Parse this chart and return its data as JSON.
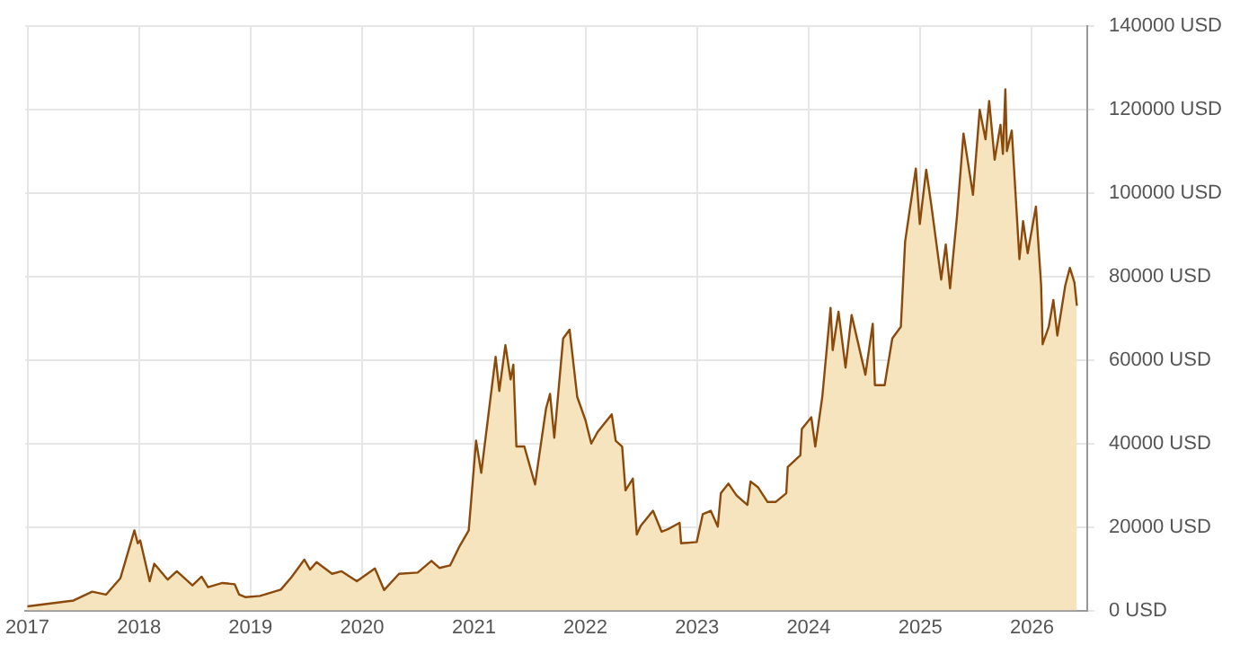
{
  "chart_data": {
    "type": "area",
    "xlim": [
      "2016-12-25",
      "2026-07-01"
    ],
    "xticks": [
      "2017",
      "2018",
      "2019",
      "2020",
      "2021",
      "2022",
      "2023",
      "2024",
      "2025",
      "2026"
    ],
    "ylim": [
      0,
      140000
    ],
    "yticks": [
      {
        "value": 0,
        "label": "0 USD"
      },
      {
        "value": 20000,
        "label": "20000 USD"
      },
      {
        "value": 40000,
        "label": "40000 USD"
      },
      {
        "value": 60000,
        "label": "60000 USD"
      },
      {
        "value": 80000,
        "label": "80000 USD"
      },
      {
        "value": 100000,
        "label": "100000 USD"
      },
      {
        "value": 120000,
        "label": "120000 USD"
      },
      {
        "value": 140000,
        "label": "140000 USD"
      }
    ],
    "grid": true,
    "marker": "none",
    "line_style": "solid",
    "series": [
      {
        "color": "#8b4a0b",
        "x": [
          "2017-01-01",
          "2017-06-01",
          "2017-08-01",
          "2017-09-15",
          "2017-11-01",
          "2017-12-17",
          "2017-12-28",
          "2018-01-05",
          "2018-02-05",
          "2018-02-20",
          "2018-04-05",
          "2018-05-05",
          "2018-06-25",
          "2018-07-25",
          "2018-08-15",
          "2018-10-01",
          "2018-11-10",
          "2018-11-25",
          "2018-12-15",
          "2019-02-01",
          "2019-04-10",
          "2019-05-15",
          "2019-06-26",
          "2019-07-15",
          "2019-08-05",
          "2019-09-25",
          "2019-10-26",
          "2019-12-15",
          "2020-02-12",
          "2020-03-13",
          "2020-05-01",
          "2020-07-01",
          "2020-08-15",
          "2020-09-10",
          "2020-10-15",
          "2020-11-15",
          "2020-12-15",
          "2021-01-08",
          "2021-01-25",
          "2021-02-20",
          "2021-03-13",
          "2021-03-25",
          "2021-04-14",
          "2021-05-01",
          "2021-05-10",
          "2021-05-20",
          "2021-06-15",
          "2021-07-20",
          "2021-08-25",
          "2021-09-07",
          "2021-09-21",
          "2021-10-20",
          "2021-11-10",
          "2021-12-05",
          "2022-01-01",
          "2022-01-20",
          "2022-02-10",
          "2022-03-28",
          "2022-04-10",
          "2022-05-01",
          "2022-05-12",
          "2022-06-05",
          "2022-06-18",
          "2022-07-01",
          "2022-08-10",
          "2022-09-07",
          "2022-10-01",
          "2022-11-05",
          "2022-11-10",
          "2022-12-31",
          "2023-01-20",
          "2023-02-15",
          "2023-03-10",
          "2023-03-20",
          "2023-04-14",
          "2023-05-10",
          "2023-06-15",
          "2023-06-25",
          "2023-07-20",
          "2023-08-20",
          "2023-09-15",
          "2023-10-20",
          "2023-10-25",
          "2023-12-05",
          "2023-12-10",
          "2024-01-10",
          "2024-01-23",
          "2024-02-15",
          "2024-03-13",
          "2024-03-20",
          "2024-04-08",
          "2024-05-01",
          "2024-05-21",
          "2024-07-05",
          "2024-07-29",
          "2024-08-05",
          "2024-09-06",
          "2024-10-01",
          "2024-10-29",
          "2024-11-12",
          "2024-12-17",
          "2024-12-30",
          "2025-01-20",
          "2025-02-05",
          "2025-03-10",
          "2025-03-25",
          "2025-04-08",
          "2025-05-01",
          "2025-05-22",
          "2025-06-22",
          "2025-07-14",
          "2025-08-02",
          "2025-08-14",
          "2025-09-01",
          "2025-09-20",
          "2025-09-28",
          "2025-10-06",
          "2025-10-11",
          "2025-10-27",
          "2025-11-21",
          "2025-12-03",
          "2025-12-18",
          "2026-01-14",
          "2026-01-31",
          "2026-02-05",
          "2026-02-25",
          "2026-03-12",
          "2026-03-25",
          "2026-04-20",
          "2026-05-05",
          "2026-05-20",
          "2026-05-28"
        ],
        "values": [
          1000,
          2400,
          4500,
          3800,
          7700,
          19200,
          16100,
          16800,
          7000,
          11200,
          7400,
          9400,
          6000,
          8100,
          5600,
          6600,
          6300,
          3800,
          3200,
          3500,
          5000,
          8000,
          12200,
          9800,
          11600,
          8800,
          9400,
          7000,
          10100,
          4900,
          8800,
          9100,
          11900,
          10200,
          10800,
          15400,
          19200,
          40700,
          33000,
          48400,
          60800,
          52600,
          63600,
          55400,
          58900,
          39300,
          39300,
          30200,
          48400,
          51900,
          41400,
          65200,
          67300,
          51200,
          45600,
          40000,
          42800,
          47000,
          40700,
          39300,
          28800,
          31600,
          18200,
          20300,
          23900,
          18900,
          19600,
          21000,
          16100,
          16400,
          23100,
          23900,
          20100,
          28100,
          30400,
          27600,
          25300,
          30900,
          29500,
          26000,
          26000,
          28100,
          34400,
          37200,
          43500,
          46300,
          39300,
          51200,
          72500,
          62400,
          71600,
          58200,
          70800,
          56500,
          68700,
          54000,
          54000,
          65200,
          68000,
          88400,
          105900,
          92600,
          105600,
          97500,
          79300,
          87700,
          77200,
          94700,
          114300,
          99600,
          120000,
          112900,
          122100,
          108000,
          116400,
          109400,
          124900,
          110100,
          115000,
          84200,
          93300,
          85600,
          96800,
          77900,
          63800,
          68000,
          74400,
          65900,
          77900,
          82100,
          78600,
          73000
        ]
      }
    ]
  }
}
